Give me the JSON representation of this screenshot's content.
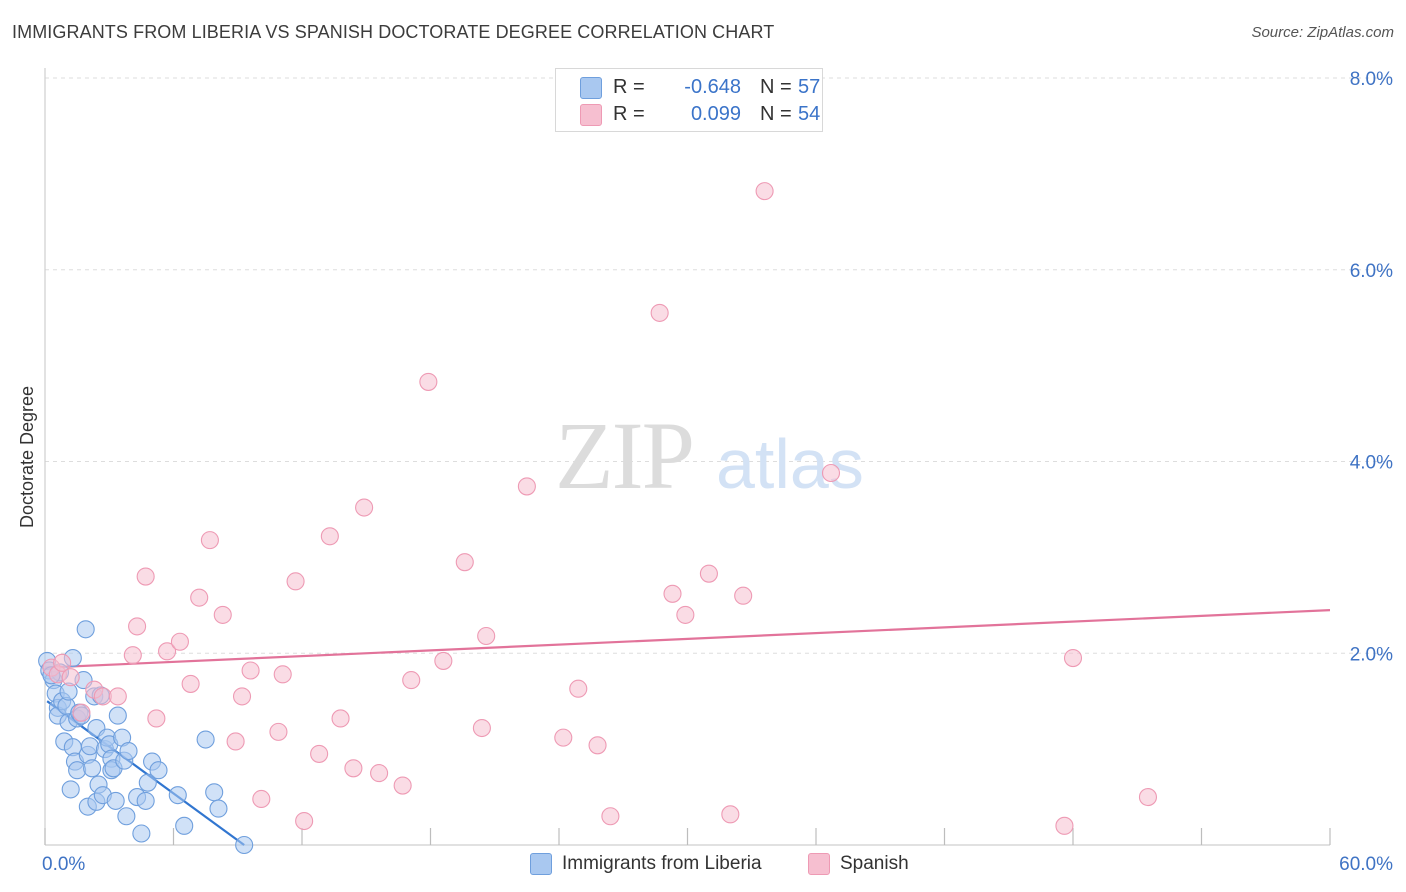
{
  "header": {
    "title": "IMMIGRANTS FROM LIBERIA VS SPANISH DOCTORATE DEGREE CORRELATION CHART",
    "source": "Source: ZipAtlas.com"
  },
  "watermark": {
    "zip": "ZIP",
    "atlas": "atlas"
  },
  "legend": {
    "series": [
      {
        "name": "Immigrants from Liberia",
        "r_label": "R =",
        "r_value": "-0.648",
        "n_label": "N =",
        "n_value": "57"
      },
      {
        "name": "Spanish",
        "r_label": "R =",
        "r_value": "0.099",
        "n_label": "N =",
        "n_value": "54"
      }
    ]
  },
  "colors": {
    "blue_fill": "#a9c8f0",
    "blue_stroke": "#6f9fdd",
    "blue_line": "#3176d0",
    "pink_fill": "#f6bfd0",
    "pink_stroke": "#ee9ab4",
    "pink_line": "#e2739a",
    "tick_text": "#3f73c4",
    "grid": "#dddddd"
  },
  "chart_data": {
    "type": "scatter",
    "title": "IMMIGRANTS FROM LIBERIA VS SPANISH DOCTORATE DEGREE CORRELATION CHART",
    "xlabel": "",
    "ylabel": "Doctorate Degree",
    "xlim": [
      0,
      60
    ],
    "ylim": [
      0,
      8
    ],
    "x_ticks_labels": [
      {
        "value": 0,
        "label": "0.0%"
      },
      {
        "value": 60,
        "label": "60.0%"
      }
    ],
    "y_ticks_labels": [
      {
        "value": 2,
        "label": "2.0%"
      },
      {
        "value": 4,
        "label": "4.0%"
      },
      {
        "value": 6,
        "label": "6.0%"
      },
      {
        "value": 8,
        "label": "8.0%"
      }
    ],
    "x_minor_ticks": [
      0,
      6,
      12,
      18,
      24,
      30,
      36,
      42,
      48,
      54,
      60
    ],
    "grid": true,
    "series": [
      {
        "name": "Immigrants from Liberia",
        "color": "#a9c8f0",
        "trend": {
          "x": [
            0.1,
            9.3
          ],
          "y": [
            1.5,
            0.0
          ]
        },
        "points": [
          [
            0.1,
            1.92
          ],
          [
            0.2,
            1.82
          ],
          [
            0.4,
            1.72
          ],
          [
            0.5,
            1.58
          ],
          [
            0.6,
            1.43
          ],
          [
            0.6,
            1.35
          ],
          [
            0.7,
            1.8
          ],
          [
            0.8,
            1.5
          ],
          [
            0.9,
            1.08
          ],
          [
            1.0,
            1.45
          ],
          [
            1.1,
            1.6
          ],
          [
            1.1,
            1.28
          ],
          [
            1.2,
            0.58
          ],
          [
            1.3,
            1.95
          ],
          [
            1.3,
            1.02
          ],
          [
            1.4,
            0.87
          ],
          [
            1.5,
            1.32
          ],
          [
            1.5,
            0.78
          ],
          [
            1.6,
            1.38
          ],
          [
            1.7,
            1.35
          ],
          [
            1.8,
            1.72
          ],
          [
            1.9,
            2.25
          ],
          [
            2.0,
            0.94
          ],
          [
            2.0,
            0.4
          ],
          [
            2.1,
            1.03
          ],
          [
            2.2,
            0.8
          ],
          [
            2.3,
            1.55
          ],
          [
            2.4,
            1.22
          ],
          [
            2.4,
            0.45
          ],
          [
            2.5,
            0.63
          ],
          [
            2.6,
            1.56
          ],
          [
            2.7,
            0.52
          ],
          [
            2.8,
            1.0
          ],
          [
            2.9,
            1.12
          ],
          [
            3.0,
            1.05
          ],
          [
            3.1,
            0.9
          ],
          [
            3.1,
            0.78
          ],
          [
            3.2,
            0.8
          ],
          [
            3.3,
            0.46
          ],
          [
            3.4,
            1.35
          ],
          [
            3.6,
            1.12
          ],
          [
            3.7,
            0.88
          ],
          [
            3.8,
            0.3
          ],
          [
            3.9,
            0.98
          ],
          [
            4.3,
            0.5
          ],
          [
            4.5,
            0.12
          ],
          [
            4.7,
            0.46
          ],
          [
            4.8,
            0.65
          ],
          [
            5.0,
            0.87
          ],
          [
            5.3,
            0.78
          ],
          [
            6.2,
            0.52
          ],
          [
            6.5,
            0.2
          ],
          [
            7.5,
            1.1
          ],
          [
            7.9,
            0.55
          ],
          [
            8.1,
            0.38
          ],
          [
            9.3,
            0.0
          ],
          [
            0.3,
            1.77
          ]
        ]
      },
      {
        "name": "Spanish",
        "color": "#f6bfd0",
        "trend": {
          "x": [
            0.0,
            60.0
          ],
          "y": [
            1.85,
            2.45
          ]
        },
        "points": [
          [
            0.3,
            1.85
          ],
          [
            0.6,
            1.78
          ],
          [
            0.8,
            1.9
          ],
          [
            1.2,
            1.75
          ],
          [
            1.7,
            1.38
          ],
          [
            2.3,
            1.62
          ],
          [
            2.7,
            1.55
          ],
          [
            3.4,
            1.55
          ],
          [
            4.1,
            1.98
          ],
          [
            4.3,
            2.28
          ],
          [
            4.7,
            2.8
          ],
          [
            5.2,
            1.32
          ],
          [
            5.7,
            2.02
          ],
          [
            6.3,
            2.12
          ],
          [
            6.8,
            1.68
          ],
          [
            7.2,
            2.58
          ],
          [
            7.7,
            3.18
          ],
          [
            8.3,
            2.4
          ],
          [
            8.9,
            1.08
          ],
          [
            9.2,
            1.55
          ],
          [
            9.6,
            1.82
          ],
          [
            10.1,
            0.48
          ],
          [
            10.9,
            1.18
          ],
          [
            11.1,
            1.78
          ],
          [
            11.7,
            2.75
          ],
          [
            12.1,
            0.25
          ],
          [
            12.8,
            0.95
          ],
          [
            13.3,
            3.22
          ],
          [
            13.8,
            1.32
          ],
          [
            14.4,
            0.8
          ],
          [
            14.9,
            3.52
          ],
          [
            15.6,
            0.75
          ],
          [
            16.7,
            0.62
          ],
          [
            17.1,
            1.72
          ],
          [
            17.9,
            4.83
          ],
          [
            18.6,
            1.92
          ],
          [
            19.6,
            2.95
          ],
          [
            20.4,
            1.22
          ],
          [
            20.6,
            2.18
          ],
          [
            22.5,
            3.74
          ],
          [
            24.2,
            1.12
          ],
          [
            24.9,
            1.63
          ],
          [
            25.8,
            1.04
          ],
          [
            26.4,
            0.3
          ],
          [
            28.7,
            5.55
          ],
          [
            29.3,
            2.62
          ],
          [
            29.9,
            2.4
          ],
          [
            31.0,
            2.83
          ],
          [
            32.0,
            0.32
          ],
          [
            32.6,
            2.6
          ],
          [
            33.6,
            6.82
          ],
          [
            36.7,
            3.88
          ],
          [
            48.0,
            1.95
          ],
          [
            51.5,
            0.5
          ]
        ],
        "extra_points": [
          [
            47.6,
            0.2
          ]
        ]
      }
    ]
  }
}
